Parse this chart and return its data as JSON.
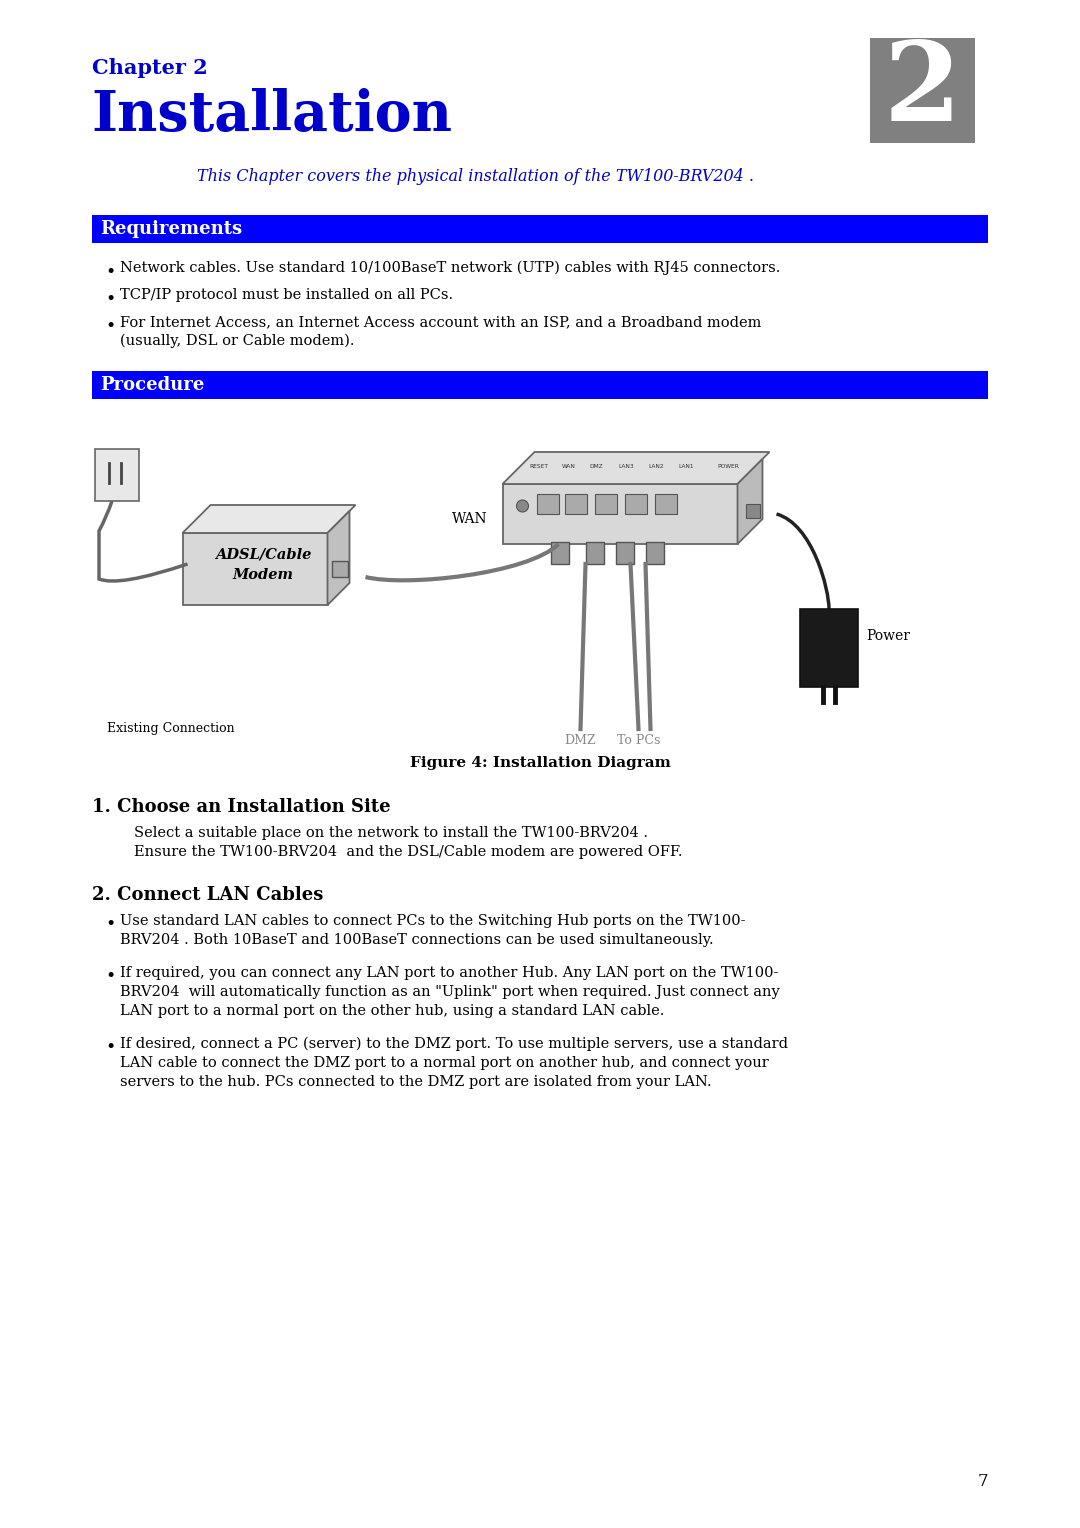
{
  "page_bg": "#ffffff",
  "chapter_label": "Chapter 2",
  "chapter_label_color": "#0000cc",
  "chapter_label_fontsize": 15,
  "chapter_number_bg": "#808080",
  "chapter_number_text": "2",
  "chapter_number_fontsize": 80,
  "title": "Installation",
  "title_color": "#0000cc",
  "title_fontsize": 40,
  "subtitle": "This Chapter covers the physical installation of the TW100-BRV204 .",
  "subtitle_color": "#0000cc",
  "subtitle_fontsize": 11.5,
  "section1_header": "Requirements",
  "section1_bg": "#0000ff",
  "section1_text_color": "#ffffff",
  "section1_fontsize": 13,
  "requirements_bullets": [
    "Network cables. Use standard 10/100BaseT network (UTP) cables with RJ45 connectors.",
    "TCP/IP protocol must be installed on all PCs.",
    "For Internet Access, an Internet Access account with an ISP, and a Broadband modem\n(usually, DSL or Cable modem)."
  ],
  "section2_header": "Procedure",
  "section2_bg": "#0000ff",
  "section2_text_color": "#ffffff",
  "section2_fontsize": 13,
  "figure_caption": "Figure 4: Installation Diagram",
  "figure_caption_fontsize": 11,
  "section3_header": "1. Choose an Installation Site",
  "section3_fontsize": 13,
  "section3_text1": "Select a suitable place on the network to install the TW100-BRV204 .",
  "section3_text2": "Ensure the TW100-BRV204  and the DSL/Cable modem are powered OFF.",
  "section4_header": "2. Connect LAN Cables",
  "section4_fontsize": 13,
  "connect_bullets": [
    "Use standard LAN cables to connect PCs to the Switching Hub ports on the TW100-\nBRV204 . Both 10BaseT and 100BaseT connections can be used simultaneously.",
    "If required, you can connect any LAN port to another Hub. Any LAN port on the TW100-\nBRV204  will automatically function as an \"Uplink\" port when required. Just connect any\nLAN port to a normal port on the other hub, using a standard LAN cable.",
    "If desired, connect a PC (server) to the DMZ port. To use multiple servers, use a standard\nLAN cable to connect the DMZ port to a normal port on another hub, and connect your\nservers to the hub. PCs connected to the DMZ port are isolated from your LAN."
  ],
  "page_number": "7",
  "body_fontsize": 10.5,
  "body_color": "#000000",
  "ml": 0.085,
  "mr": 0.915
}
